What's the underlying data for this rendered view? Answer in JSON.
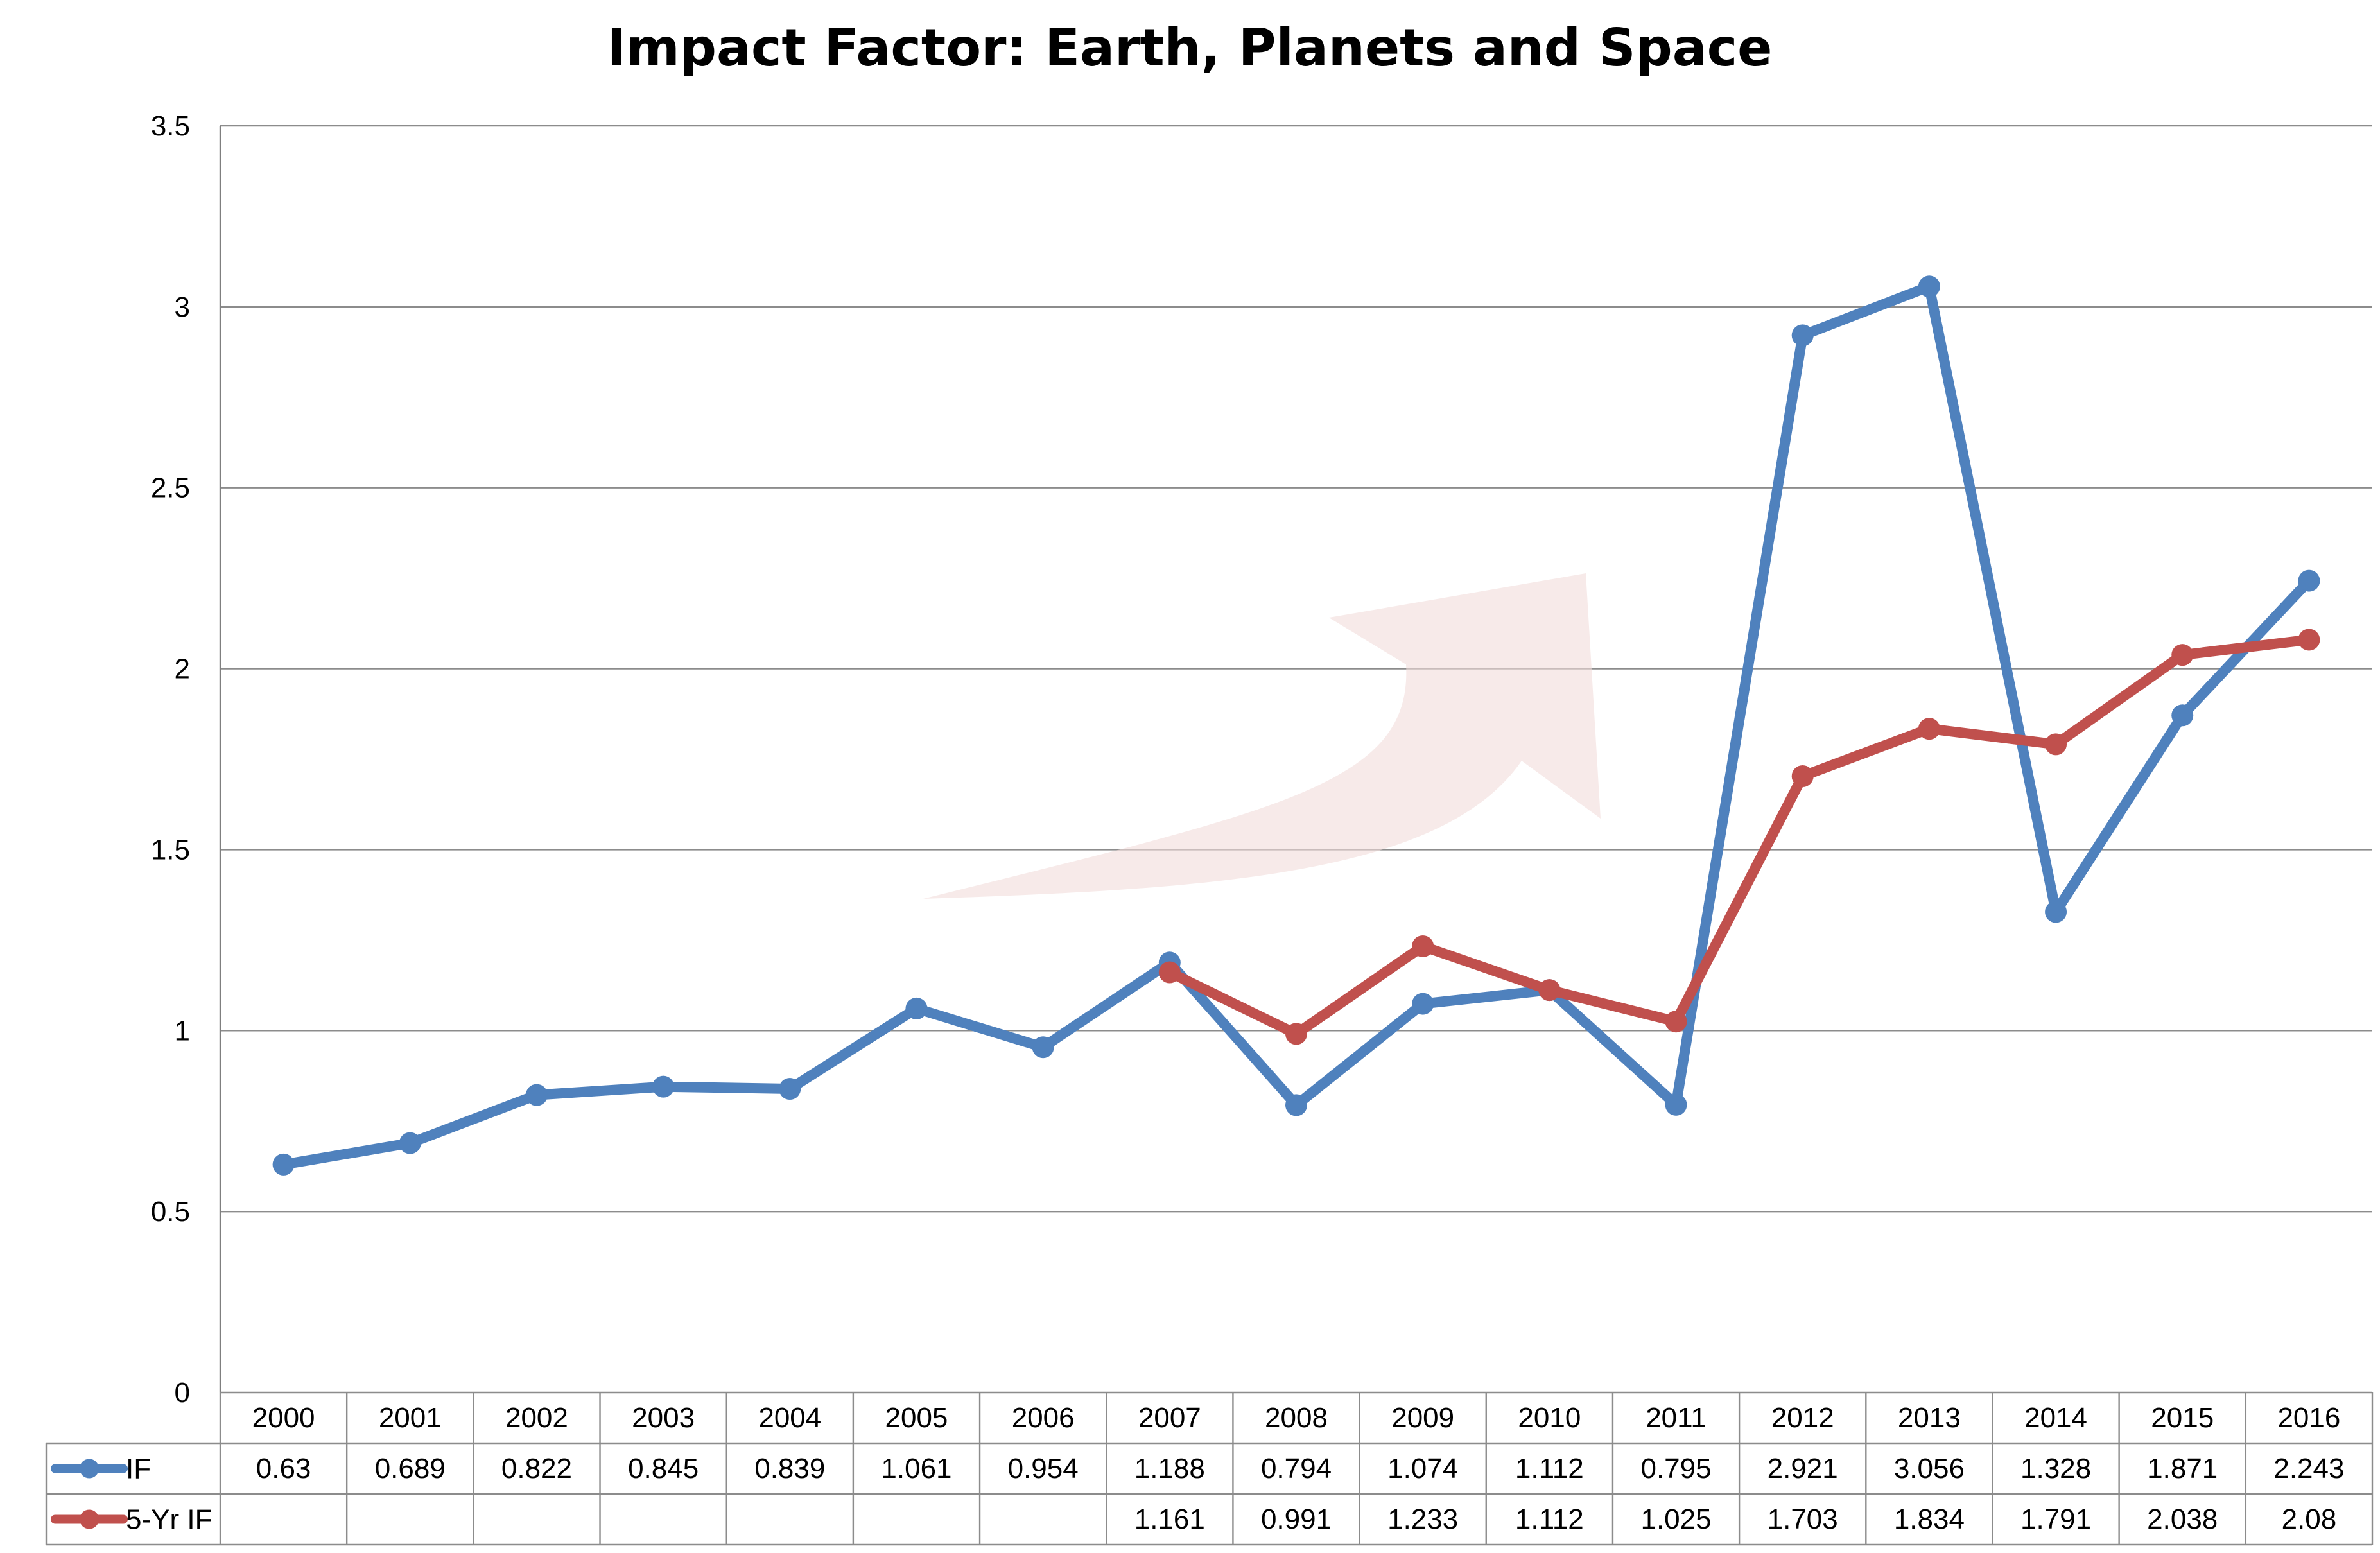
{
  "chart_data": {
    "type": "line",
    "title": "Impact Factor: Earth, Planets and Space",
    "xlabel": "",
    "ylabel": "",
    "ylim": [
      0,
      3.5
    ],
    "yticks": [
      "0",
      "0.5",
      "1",
      "1.5",
      "2",
      "2.5",
      "3",
      "3.5"
    ],
    "grid": true,
    "legend": "data-table-left",
    "categories": [
      "2000",
      "2001",
      "2002",
      "2003",
      "2004",
      "2005",
      "2006",
      "2007",
      "2008",
      "2009",
      "2010",
      "2011",
      "2012",
      "2013",
      "2014",
      "2015",
      "2016"
    ],
    "series": [
      {
        "name": "IF",
        "color": "#4f81bd",
        "values": [
          0.63,
          0.689,
          0.822,
          0.845,
          0.839,
          1.061,
          0.954,
          1.188,
          0.794,
          1.074,
          1.112,
          0.795,
          2.921,
          3.056,
          1.328,
          1.871,
          2.243
        ],
        "labels": [
          "0.63",
          "0.689",
          "0.822",
          "0.845",
          "0.839",
          "1.061",
          "0.954",
          "1.188",
          "0.794",
          "1.074",
          "1.112",
          "0.795",
          "2.921",
          "3.056",
          "1.328",
          "1.871",
          "2.243"
        ]
      },
      {
        "name": "5-Yr IF",
        "color": "#c0504d",
        "values": [
          null,
          null,
          null,
          null,
          null,
          null,
          null,
          1.161,
          0.991,
          1.233,
          1.112,
          1.025,
          1.703,
          1.834,
          1.791,
          2.038,
          2.08
        ],
        "labels": [
          "",
          "",
          "",
          "",
          "",
          "",
          "",
          "1.161",
          "0.991",
          "1.233",
          "1.112",
          "1.025",
          "1.703",
          "1.834",
          "1.791",
          "2.038",
          "2.08"
        ]
      }
    ],
    "decoration": {
      "type": "trend-arrow",
      "color": "#f2dcdb"
    }
  }
}
